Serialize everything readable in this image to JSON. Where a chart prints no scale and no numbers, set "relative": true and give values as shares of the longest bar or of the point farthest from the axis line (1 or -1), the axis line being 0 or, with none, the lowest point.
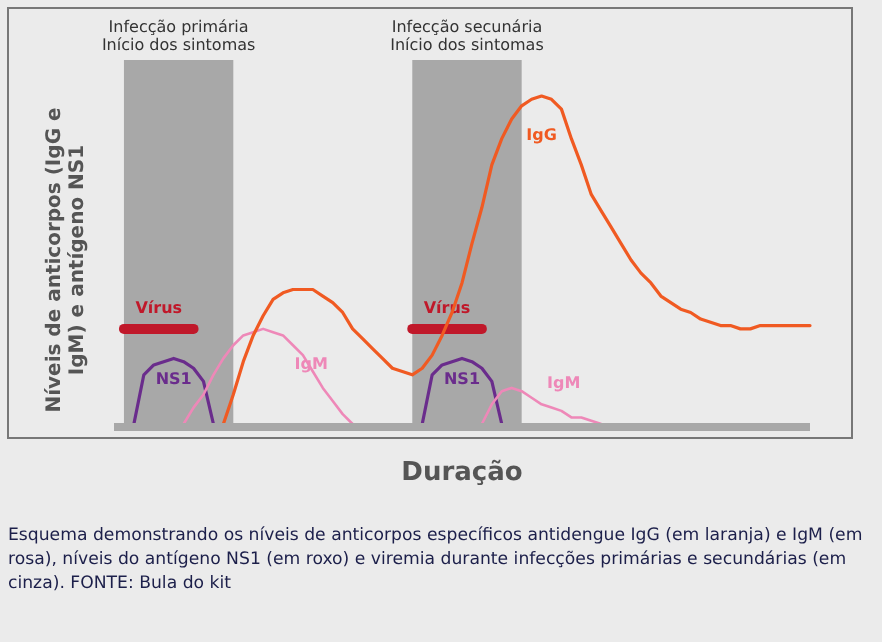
{
  "chart_data": {
    "type": "line",
    "relative": true,
    "ylabel": "Níveis de anticorpos (IgG e IgM) e antígeno NS1",
    "xlabel": "Duração",
    "marker": "none",
    "line_style": "solid",
    "categories": [
      null,
      null,
      null,
      null,
      null,
      null,
      null,
      null,
      null,
      null,
      null,
      null,
      null,
      null,
      null,
      null,
      null,
      null,
      null,
      null,
      null,
      null,
      null,
      null,
      null,
      null,
      null,
      null,
      null,
      null,
      null,
      null,
      null,
      null,
      null,
      null,
      null,
      null,
      null,
      null,
      null,
      null,
      null,
      null,
      null,
      null,
      null,
      null,
      null,
      null,
      null,
      null,
      null,
      null,
      null,
      null,
      null,
      null,
      null,
      null,
      null,
      null,
      null,
      null,
      null,
      null,
      null,
      null,
      null,
      null,
      null
    ],
    "series": [
      {
        "name": "Vírus",
        "color": "#c0182a",
        "values": [
          null,
          0.29,
          0.29,
          0.29,
          0.29,
          0.29,
          0.29,
          0.29,
          0.29,
          null,
          null,
          null,
          null,
          null,
          null,
          null,
          null,
          null,
          null,
          null,
          null,
          null,
          null,
          null,
          null,
          null,
          null,
          null,
          null,
          null,
          null,
          null,
          null,
          null,
          null,
          null,
          null,
          null,
          null,
          null,
          null,
          null,
          null,
          null,
          null,
          null,
          null,
          null,
          null,
          null,
          null,
          null,
          null,
          null,
          null,
          null,
          null,
          null,
          null,
          null,
          null,
          null,
          null,
          null,
          null,
          null,
          null,
          null,
          null,
          null,
          null
        ]
      },
      {
        "name": "Vírus",
        "color": "#c0182a",
        "values": [
          null,
          null,
          null,
          null,
          null,
          null,
          null,
          null,
          null,
          null,
          null,
          null,
          null,
          null,
          null,
          null,
          null,
          null,
          null,
          null,
          null,
          null,
          null,
          null,
          null,
          null,
          null,
          null,
          null,
          null,
          0.29,
          0.29,
          0.29,
          0.29,
          0.29,
          0.29,
          0.29,
          0.29,
          null,
          null,
          null,
          null,
          null,
          null,
          null,
          null,
          null,
          null,
          null,
          null,
          null,
          null,
          null,
          null,
          null,
          null,
          null,
          null,
          null,
          null,
          null,
          null,
          null,
          null,
          null,
          null,
          null,
          null,
          null,
          null,
          null
        ]
      },
      {
        "name": "NS1",
        "color": "#6a2c8c",
        "values": [
          null,
          null,
          0,
          0.15,
          0.18,
          0.19,
          0.2,
          0.19,
          0.17,
          0.13,
          0,
          null,
          null,
          null,
          null,
          null,
          null,
          null,
          null,
          null,
          null,
          null,
          null,
          null,
          null,
          null,
          null,
          null,
          null,
          null,
          null,
          null,
          null,
          null,
          null,
          null,
          null,
          null,
          null,
          null,
          null,
          null,
          null,
          null,
          null,
          null,
          null,
          null,
          null,
          null,
          null,
          null,
          null,
          null,
          null,
          null,
          null,
          null,
          null,
          null,
          null,
          null,
          null,
          null,
          null,
          null,
          null,
          null,
          null,
          null,
          null
        ]
      },
      {
        "name": "NS1",
        "color": "#6a2c8c",
        "values": [
          null,
          null,
          null,
          null,
          null,
          null,
          null,
          null,
          null,
          null,
          null,
          null,
          null,
          null,
          null,
          null,
          null,
          null,
          null,
          null,
          null,
          null,
          null,
          null,
          null,
          null,
          null,
          null,
          null,
          null,
          null,
          0,
          0.15,
          0.18,
          0.19,
          0.2,
          0.19,
          0.17,
          0.13,
          0,
          null,
          null,
          null,
          null,
          null,
          null,
          null,
          null,
          null,
          null,
          null,
          null,
          null,
          null,
          null,
          null,
          null,
          null,
          null,
          null,
          null,
          null,
          null,
          null,
          null,
          null,
          null,
          null,
          null,
          null,
          null
        ]
      },
      {
        "name": "IgM",
        "color": "#ee88b8",
        "values": [
          null,
          null,
          null,
          null,
          null,
          null,
          null,
          0,
          0.05,
          0.09,
          0.15,
          0.2,
          0.24,
          0.27,
          0.28,
          0.29,
          0.28,
          0.27,
          0.24,
          0.21,
          0.16,
          0.11,
          0.07,
          0.03,
          0,
          null,
          null,
          null,
          null,
          null,
          null,
          null,
          null,
          null,
          null,
          null,
          null,
          null,
          null,
          null,
          null,
          null,
          null,
          null,
          null,
          null,
          null,
          null,
          null,
          null,
          null,
          null,
          null,
          null,
          null,
          null,
          null,
          null,
          null,
          null,
          null,
          null,
          null,
          null,
          null,
          null,
          null,
          null,
          null,
          null,
          null
        ]
      },
      {
        "name": "IgM",
        "color": "#ee88b8",
        "values": [
          null,
          null,
          null,
          null,
          null,
          null,
          null,
          null,
          null,
          null,
          null,
          null,
          null,
          null,
          null,
          null,
          null,
          null,
          null,
          null,
          null,
          null,
          null,
          null,
          null,
          null,
          null,
          null,
          null,
          null,
          null,
          null,
          null,
          null,
          null,
          null,
          null,
          0,
          0.06,
          0.1,
          0.11,
          0.1,
          0.08,
          0.06,
          0.05,
          0.04,
          0.02,
          0.02,
          0.01,
          0,
          null,
          null,
          null,
          null,
          null,
          null,
          null,
          null,
          null,
          null,
          null,
          null,
          null,
          null,
          null,
          null,
          null,
          null,
          null,
          null,
          null
        ]
      },
      {
        "name": "IgG",
        "color": "#f05a22",
        "values": [
          null,
          null,
          null,
          null,
          null,
          null,
          null,
          null,
          null,
          null,
          null,
          0,
          0.09,
          0.19,
          0.27,
          0.33,
          0.38,
          0.4,
          0.41,
          0.41,
          0.41,
          0.39,
          0.37,
          0.34,
          0.29,
          0.26,
          0.23,
          0.2,
          0.17,
          0.16,
          0.15,
          0.17,
          0.21,
          0.27,
          0.34,
          0.43,
          0.55,
          0.66,
          0.79,
          0.87,
          0.93,
          0.97,
          0.99,
          1,
          0.99,
          0.96,
          0.87,
          0.79,
          0.7,
          0.65,
          0.6,
          0.55,
          0.5,
          0.46,
          0.43,
          0.39,
          0.37,
          0.35,
          0.34,
          0.32,
          0.31,
          0.3,
          0.3,
          0.29,
          0.29,
          0.3,
          0.3,
          0.3,
          0.3,
          0.3,
          0.3
        ]
      }
    ],
    "annotations": [
      "Infecção primária Início dos sintomas",
      "Infecção secunária Início dos sintomas",
      "Esquema demonstrando os níveis de anticorpos específicos antidengue IgG (em laranja) e IgM (em rosa), níveis do antígeno NS1 (em roxo) e viremia durante infecções primárias e secundárias (em cinza). FONTE: Bula do kit"
    ]
  }
}
